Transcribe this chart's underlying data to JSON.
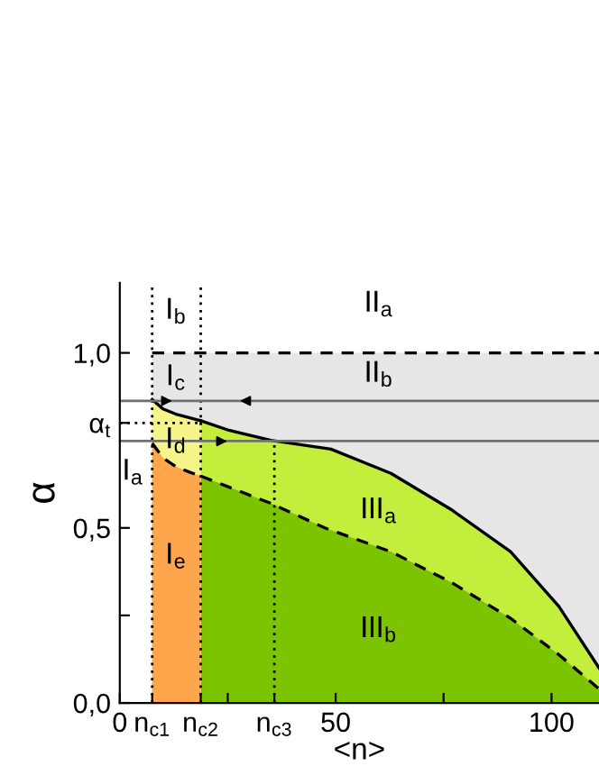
{
  "chart_data": {
    "type": "area",
    "xlabel": "<n>",
    "ylabel": "α",
    "xlim": [
      0,
      111
    ],
    "ylim": [
      0,
      1.2
    ],
    "xticks": [
      0,
      {
        "value": 7.5,
        "label": "n$_{c1}$"
      },
      {
        "value": 18.75,
        "label": "n$_{c2}$"
      },
      {
        "value": 25,
        "label": null
      },
      {
        "value": 35.8,
        "label": "n$_{c3}$"
      },
      50,
      {
        "value": 75,
        "label": null
      },
      100
    ],
    "yticks": [
      {
        "value": 0,
        "label": "0,0"
      },
      {
        "value": 0.25,
        "label": null
      },
      {
        "value": 0.5,
        "label": "0,5"
      },
      {
        "value": 0.8,
        "label": "α$_{t}$"
      },
      {
        "value": 1.0,
        "label": "1,0"
      }
    ],
    "series": [
      {
        "color": "#e6e6e6",
        "line_style": "dashed",
        "x": [
          7.5,
          111
        ],
        "values": [
          1.0,
          1.0
        ]
      },
      {
        "color": "#c3ef3c",
        "line_style": "solid",
        "x": [
          18.75,
          25,
          35,
          48.9,
          62.8,
          76.7,
          90.5,
          101.7,
          111
        ],
        "values": [
          0.806,
          0.78,
          0.75,
          0.725,
          0.656,
          0.553,
          0.432,
          0.276,
          0.1
        ]
      },
      {
        "color": "#7cc300",
        "line_style": "dashed",
        "x": [
          18.75,
          35,
          47.5,
          62.8,
          76.7,
          90.5,
          101.7,
          111
        ],
        "values": [
          0.648,
          0.57,
          0.5,
          0.432,
          0.345,
          0.242,
          0.138,
          0.04
        ]
      },
      {
        "color": "#f6f58a",
        "line_style": "solid",
        "x": [
          7.5,
          10,
          13,
          16,
          18.75
        ],
        "values": [
          0.867,
          0.84,
          0.825,
          0.815,
          0.806
        ]
      },
      {
        "color": "#ffa64d",
        "line_style": "dashed",
        "x": [
          7.5,
          10,
          13,
          16,
          18.75
        ],
        "values": [
          0.742,
          0.7,
          0.675,
          0.66,
          0.648
        ]
      },
      {
        "type": "line",
        "color": "#000000",
        "line_style": "dotted",
        "x": [
          35.8,
          35.8
        ],
        "values": [
          0,
          0.748
        ]
      },
      {
        "type": "line",
        "color": "#000000",
        "line_style": "dotted",
        "x": [
          0,
          18.75
        ],
        "values": [
          0.8,
          0.8
        ]
      }
    ],
    "ref_lines": [
      {
        "axis": "x",
        "value": 7.5,
        "label": null,
        "color": "#000000",
        "line_style": "dotted"
      },
      {
        "axis": "x",
        "value": 18.75,
        "label": null,
        "color": "#000000",
        "line_style": "dotted"
      },
      {
        "axis": "y",
        "value": 0.863,
        "label": null,
        "color": "#707070",
        "line_style": "solid"
      },
      {
        "axis": "y",
        "value": 0.748,
        "label": null,
        "color": "#707070",
        "line_style": "solid"
      }
    ],
    "annotations": [
      "I$_{a}$",
      "I$_{b}$",
      "I$_{c}$",
      "I$_{d}$",
      "I$_{e}$",
      "II$_{a}$",
      "II$_{b}$",
      "III$_{a}$",
      "III$_{b}$"
    ],
    "grid": false,
    "legend": false
  }
}
